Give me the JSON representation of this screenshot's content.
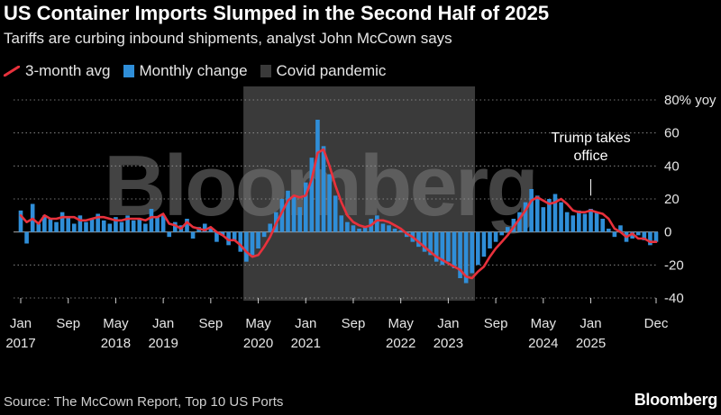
{
  "header": {
    "title": "US Container Imports Slumped in the Second Half of 2025",
    "subtitle": "Tariffs are curbing inbound shipments, analyst John McCown says"
  },
  "legend": {
    "avg_label": "3-month avg",
    "monthly_label": "Monthly change",
    "covid_label": "Covid pandemic"
  },
  "colors": {
    "avg_line": "#e8313c",
    "bars": "#2f8ed8",
    "covid_band": "#3a3a3a",
    "background": "#000000"
  },
  "footer": {
    "source": "Source: The McCown Report, Top 10 US Ports",
    "brand": "Bloomberg"
  },
  "watermark": "Bloomberg",
  "chart_data": {
    "type": "bar",
    "start": "2017-01",
    "end": "2025-12",
    "frequency": "monthly",
    "y_unit": "yoy",
    "ylim": [
      -40,
      80
    ],
    "yticks": [
      80,
      60,
      40,
      20,
      0,
      -20,
      -40
    ],
    "ytick_labels": [
      "80% yoy",
      "60",
      "40",
      "20",
      "0",
      "-20",
      "-40"
    ],
    "xtick_labels": [
      {
        "date": "2017-01",
        "line1": "Jan",
        "line2": "2017"
      },
      {
        "date": "2017-09",
        "line1": "Sep",
        "line2": ""
      },
      {
        "date": "2018-05",
        "line1": "May",
        "line2": "2018"
      },
      {
        "date": "2019-01",
        "line1": "Jan",
        "line2": "2019"
      },
      {
        "date": "2019-09",
        "line1": "Sep",
        "line2": ""
      },
      {
        "date": "2020-05",
        "line1": "May",
        "line2": "2020"
      },
      {
        "date": "2021-01",
        "line1": "Jan",
        "line2": "2021"
      },
      {
        "date": "2021-09",
        "line1": "Sep",
        "line2": ""
      },
      {
        "date": "2022-05",
        "line1": "May",
        "line2": "2022"
      },
      {
        "date": "2023-01",
        "line1": "Jan",
        "line2": "2023"
      },
      {
        "date": "2023-09",
        "line1": "Sep",
        "line2": ""
      },
      {
        "date": "2024-05",
        "line1": "May",
        "line2": "2024"
      },
      {
        "date": "2025-01",
        "line1": "Jan",
        "line2": "2025"
      },
      {
        "date": "2025-12",
        "line1": "Dec",
        "line2": ""
      }
    ],
    "covid_band": {
      "start": "2020-03",
      "end": "2023-05"
    },
    "annotation": {
      "date": "2025-01",
      "text_lines": [
        "Trump takes",
        "office"
      ]
    },
    "series": [
      {
        "name": "Monthly change",
        "values": [
          13,
          -7,
          17,
          5,
          10,
          8,
          6,
          12,
          9,
          5,
          10,
          6,
          8,
          11,
          7,
          5,
          9,
          6,
          10,
          7,
          8,
          5,
          14,
          9,
          10,
          -3,
          6,
          4,
          8,
          -4,
          3,
          5,
          2,
          -6,
          -2,
          -8,
          -5,
          -12,
          -18,
          -14,
          -10,
          -3,
          5,
          12,
          20,
          25,
          22,
          15,
          30,
          45,
          68,
          52,
          35,
          22,
          10,
          6,
          4,
          2,
          3,
          8,
          10,
          5,
          4,
          2,
          1,
          -3,
          -6,
          -9,
          -12,
          -14,
          -18,
          -20,
          -18,
          -22,
          -28,
          -31,
          -25,
          -20,
          -15,
          -10,
          -6,
          -2,
          3,
          8,
          12,
          18,
          26,
          22,
          15,
          20,
          23,
          18,
          12,
          10,
          13,
          11,
          14,
          12,
          8,
          2,
          -3,
          4,
          -6,
          -4,
          -2,
          -5,
          -8,
          -6
        ]
      },
      {
        "name": "3-month avg",
        "values": [
          10,
          6,
          8,
          5,
          10,
          8,
          8,
          9,
          9,
          9,
          7,
          7,
          8,
          9,
          9,
          8,
          7,
          7,
          8,
          8,
          8,
          7,
          9,
          9,
          11,
          5,
          4,
          2,
          6,
          3,
          2,
          1,
          3,
          0,
          -2,
          -5,
          -5,
          -8,
          -12,
          -15,
          -14,
          -9,
          -3,
          5,
          12,
          19,
          22,
          21,
          22,
          32,
          48,
          50,
          40,
          28,
          18,
          10,
          6,
          4,
          3,
          4,
          7,
          7,
          6,
          4,
          2,
          -1,
          -3,
          -6,
          -9,
          -12,
          -15,
          -17,
          -19,
          -21,
          -23,
          -27,
          -28,
          -24,
          -21,
          -15,
          -10,
          -6,
          -2,
          3,
          8,
          13,
          19,
          21,
          19,
          17,
          18,
          20,
          17,
          13,
          12,
          12,
          13,
          12,
          11,
          8,
          2,
          0,
          -3,
          -1,
          -4,
          -4,
          -6,
          -6
        ]
      }
    ]
  }
}
